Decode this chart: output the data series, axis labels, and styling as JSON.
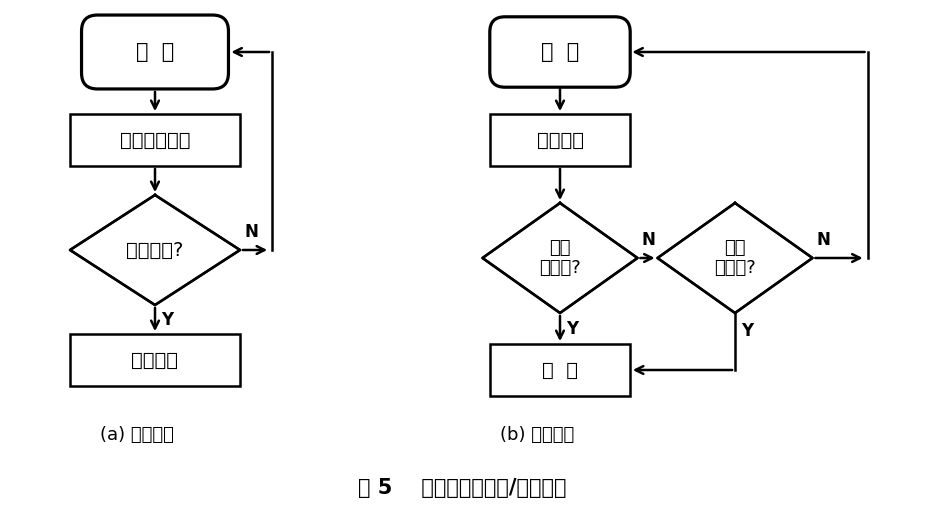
{
  "title": "图 5    预约延时算法主/从机流程",
  "bg_color": "#ffffff",
  "line_color": "#000000",
  "text_color": "#000000",
  "label_a": "(a) 主机流程",
  "label_b": "(b) 从机流程",
  "font_name": "WenQuanYi Micro Hei"
}
